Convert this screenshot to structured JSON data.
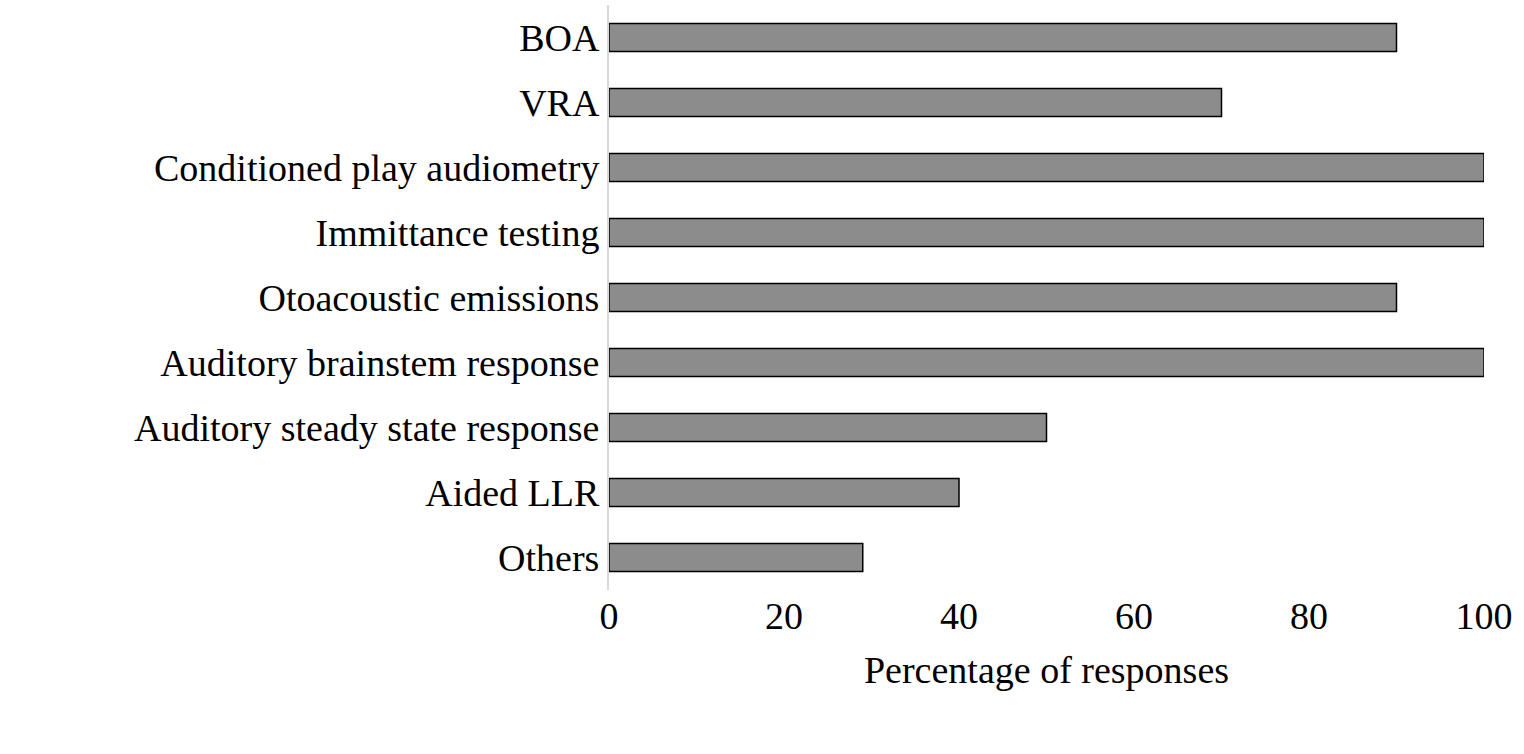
{
  "chart_data": {
    "type": "bar",
    "orientation": "horizontal",
    "categories": [
      "BOA",
      "VRA",
      "Conditioned play audiometry",
      "Immittance testing",
      "Otoacoustic emissions",
      "Auditory brainstem response",
      "Auditory steady state response",
      "Aided LLR",
      "Others"
    ],
    "values": [
      90,
      70,
      100,
      100,
      90,
      100,
      50,
      40,
      29
    ],
    "color": "#8c8c8c",
    "x_label": "Percentage of responses",
    "xlim": [
      0,
      100
    ],
    "xticks": [
      0,
      20,
      40,
      60,
      80,
      100
    ],
    "grid": false
  }
}
